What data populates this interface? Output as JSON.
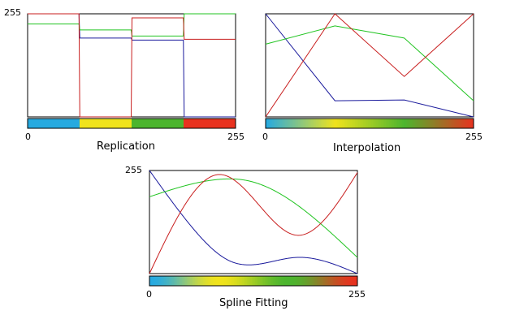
{
  "panels": [
    {
      "id": "replication",
      "title": "Replication",
      "y_max_label": "255",
      "x_min_label": "0",
      "x_max_label": "255",
      "curve_samples": 256,
      "colors": {
        "red": "#c81e1e",
        "green": "#21c421",
        "blue": "#1a1a9c"
      },
      "palette": [
        {
          "from": 0,
          "to": 64,
          "color": "#27aae0"
        },
        {
          "from": 64,
          "to": 128,
          "color": "#f0e31c"
        },
        {
          "from": 128,
          "to": 192,
          "color": "#4cb52e"
        },
        {
          "from": 192,
          "to": 256,
          "color": "#e8321f"
        }
      ],
      "channels": {
        "red": [
          [
            0,
            255
          ],
          [
            63,
            255
          ],
          [
            64,
            0
          ],
          [
            127,
            0
          ],
          [
            128,
            245
          ],
          [
            191,
            245
          ],
          [
            192,
            192
          ],
          [
            255,
            192
          ]
        ],
        "green": [
          [
            0,
            230
          ],
          [
            63,
            230
          ],
          [
            64,
            215
          ],
          [
            127,
            215
          ],
          [
            128,
            200
          ],
          [
            191,
            200
          ],
          [
            192,
            255
          ],
          [
            255,
            255
          ]
        ],
        "blue": [
          [
            0,
            255
          ],
          [
            63,
            255
          ],
          [
            64,
            195
          ],
          [
            127,
            195
          ],
          [
            128,
            190
          ],
          [
            191,
            190
          ],
          [
            192,
            0
          ],
          [
            255,
            0
          ]
        ]
      }
    },
    {
      "id": "interpolation",
      "title": "Interpolation",
      "x_min_label": "0",
      "x_max_label": "255",
      "curve_samples": 256,
      "colors": {
        "red": "#c81e1e",
        "green": "#21c421",
        "blue": "#1a1a9c"
      },
      "palette": [
        {
          "at": 0,
          "color": "#27aae0"
        },
        {
          "at": 85,
          "color": "#f0e31c"
        },
        {
          "at": 170,
          "color": "#4cb52e"
        },
        {
          "at": 255,
          "color": "#e8321f"
        }
      ],
      "channels": {
        "red": [
          [
            0,
            0
          ],
          [
            85,
            255
          ],
          [
            170,
            100
          ],
          [
            255,
            255
          ]
        ],
        "green": [
          [
            0,
            180
          ],
          [
            85,
            225
          ],
          [
            170,
            195
          ],
          [
            255,
            40
          ]
        ],
        "blue": [
          [
            0,
            255
          ],
          [
            85,
            40
          ],
          [
            170,
            42
          ],
          [
            255,
            0
          ]
        ]
      }
    },
    {
      "id": "spline-fitting",
      "title": "Spline Fitting",
      "y_max_label": "255",
      "x_min_label": "0",
      "x_max_label": "255",
      "curve_samples": 256,
      "colors": {
        "red": "#c81e1e",
        "green": "#21c421",
        "blue": "#1a1a9c"
      },
      "palette": [
        {
          "at": 0,
          "color": "#27aae0"
        },
        {
          "at": 85,
          "color": "#f0e31c"
        },
        {
          "at": 170,
          "color": "#4cb52e"
        },
        {
          "at": 255,
          "color": "#e8321f"
        }
      ],
      "channels": {
        "red": [
          [
            0,
            0
          ],
          [
            85,
            245
          ],
          [
            180,
            95
          ],
          [
            255,
            250
          ]
        ],
        "green": [
          [
            0,
            190
          ],
          [
            85,
            233
          ],
          [
            120,
            230
          ],
          [
            255,
            40
          ]
        ],
        "blue": [
          [
            0,
            255
          ],
          [
            50,
            120
          ],
          [
            100,
            30
          ],
          [
            180,
            40
          ],
          [
            255,
            0
          ]
        ]
      }
    }
  ]
}
